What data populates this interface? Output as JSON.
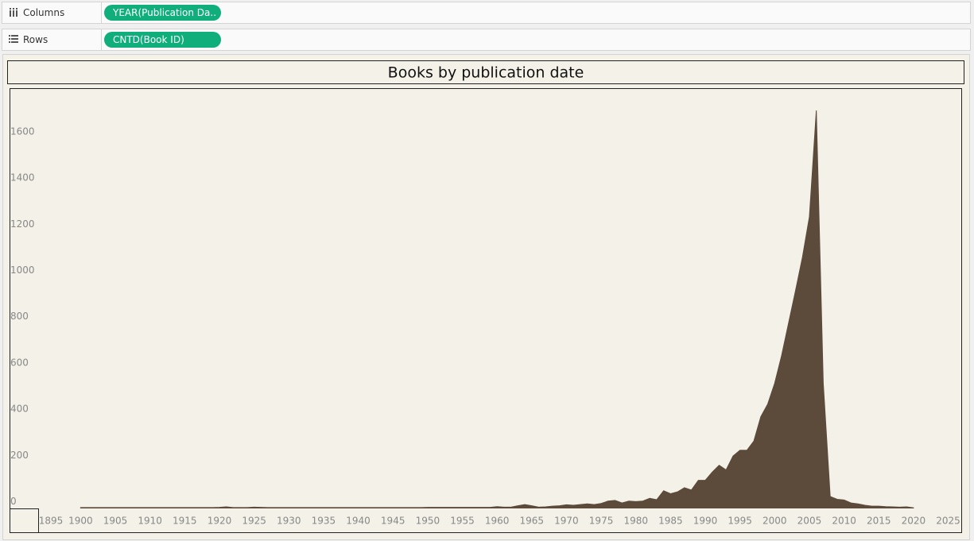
{
  "shelves": {
    "columns": {
      "label": "Columns",
      "pill": "YEAR(Publication Da.."
    },
    "rows": {
      "label": "Rows",
      "pill": "CNTD(Book ID)"
    }
  },
  "chart_data": {
    "type": "area",
    "title": "Books by publication date",
    "color": "#5c4a3a",
    "x": [
      1900,
      1901,
      1902,
      1903,
      1904,
      1905,
      1906,
      1907,
      1908,
      1909,
      1910,
      1911,
      1912,
      1913,
      1914,
      1915,
      1916,
      1917,
      1918,
      1919,
      1920,
      1921,
      1922,
      1923,
      1924,
      1925,
      1926,
      1927,
      1928,
      1929,
      1930,
      1931,
      1932,
      1933,
      1934,
      1935,
      1936,
      1937,
      1938,
      1939,
      1940,
      1941,
      1942,
      1943,
      1944,
      1945,
      1946,
      1947,
      1948,
      1949,
      1950,
      1951,
      1952,
      1953,
      1954,
      1955,
      1956,
      1957,
      1958,
      1959,
      1960,
      1961,
      1962,
      1963,
      1964,
      1965,
      1966,
      1967,
      1968,
      1969,
      1970,
      1971,
      1972,
      1973,
      1974,
      1975,
      1976,
      1977,
      1978,
      1979,
      1980,
      1981,
      1982,
      1983,
      1984,
      1985,
      1986,
      1987,
      1988,
      1989,
      1990,
      1991,
      1992,
      1993,
      1994,
      1995,
      1996,
      1997,
      1998,
      1999,
      2000,
      2001,
      2002,
      2003,
      2004,
      2005,
      2006,
      2007,
      2008,
      2009,
      2010,
      2011,
      2012,
      2013,
      2014,
      2015,
      2016,
      2017,
      2018,
      2019,
      2020
    ],
    "values": [
      2,
      2,
      2,
      2,
      2,
      2,
      2,
      2,
      2,
      2,
      2,
      2,
      2,
      2,
      2,
      2,
      2,
      2,
      2,
      2,
      3,
      5,
      2,
      2,
      2,
      4,
      3,
      2,
      2,
      2,
      2,
      2,
      2,
      2,
      2,
      2,
      2,
      2,
      2,
      2,
      2,
      2,
      2,
      2,
      2,
      2,
      2,
      2,
      2,
      2,
      3,
      3,
      3,
      3,
      3,
      3,
      3,
      3,
      3,
      3,
      6,
      4,
      4,
      10,
      15,
      10,
      4,
      5,
      8,
      10,
      14,
      12,
      15,
      18,
      15,
      20,
      30,
      33,
      22,
      30,
      28,
      30,
      42,
      36,
      75,
      62,
      70,
      88,
      78,
      120,
      120,
      155,
      185,
      165,
      225,
      250,
      250,
      290,
      395,
      450,
      540,
      660,
      800,
      940,
      1085,
      1260,
      1720,
      540,
      50,
      38,
      35,
      22,
      18,
      12,
      8,
      8,
      6,
      5,
      4,
      5,
      1
    ],
    "xlim": [
      1894,
      2027
    ],
    "xticks": [
      1895,
      1900,
      1905,
      1910,
      1915,
      1920,
      1925,
      1930,
      1935,
      1940,
      1945,
      1950,
      1955,
      1960,
      1965,
      1970,
      1975,
      1980,
      1985,
      1990,
      1995,
      2000,
      2005,
      2010,
      2015,
      2020,
      2025
    ],
    "ylim": [
      0,
      1813
    ],
    "yticks": [
      0,
      200,
      400,
      600,
      800,
      1000,
      1200,
      1400,
      1600
    ]
  }
}
